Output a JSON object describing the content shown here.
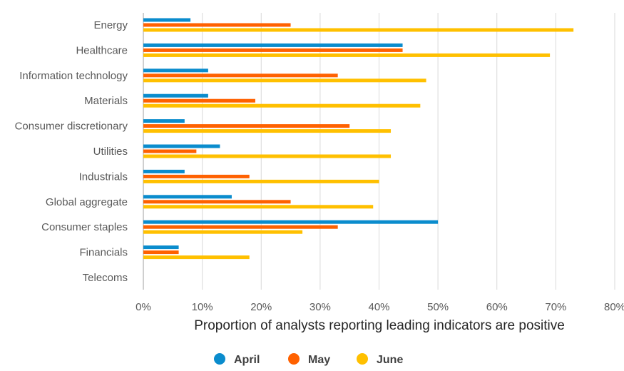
{
  "chart_data": {
    "type": "bar",
    "orientation": "horizontal",
    "title": "",
    "xlabel": "Proportion of analysts reporting leading indicators are positive",
    "ylabel": "",
    "xlim": [
      0,
      80
    ],
    "x_ticks": [
      "0%",
      "10%",
      "20%",
      "30%",
      "40%",
      "50%",
      "60%",
      "70%",
      "80%"
    ],
    "grid": true,
    "legend_position": "bottom",
    "categories": [
      "Energy",
      "Healthcare",
      "Information technology",
      "Materials",
      "Consumer discretionary",
      "Utilities",
      "Industrials",
      "Global aggregate",
      "Consumer staples",
      "Financials",
      "Telecoms"
    ],
    "series": [
      {
        "name": "April",
        "color": "#0a8ccd",
        "values": [
          8,
          44,
          11,
          11,
          7,
          13,
          7,
          15,
          50,
          6,
          0
        ]
      },
      {
        "name": "May",
        "color": "#ff6100",
        "values": [
          25,
          44,
          33,
          19,
          35,
          9,
          18,
          25,
          33,
          6,
          0
        ]
      },
      {
        "name": "June",
        "color": "#ffc000",
        "values": [
          73,
          69,
          48,
          47,
          42,
          42,
          40,
          39,
          27,
          18,
          0
        ]
      }
    ]
  }
}
